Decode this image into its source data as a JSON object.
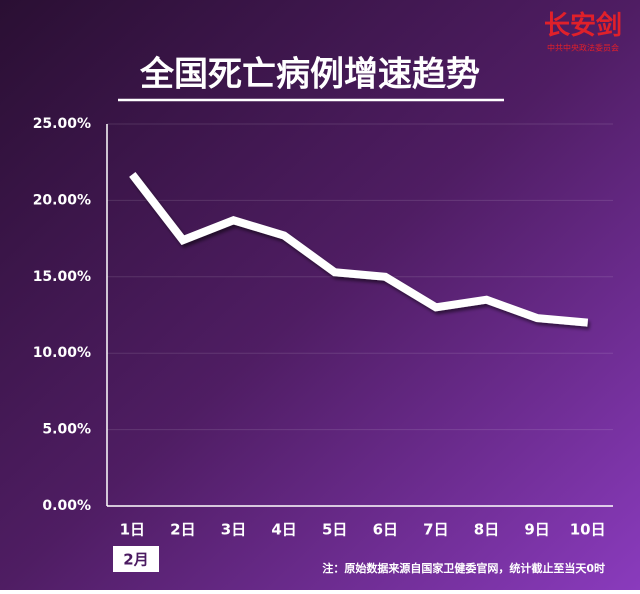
{
  "chart_data": {
    "type": "line",
    "title": "全国死亡病例增速趋势",
    "logo": {
      "name": "长安剑",
      "subtitle": "中共中央政法委员会"
    },
    "month_label": "2月",
    "note": "注：原始数据来源自国家卫健委官网，统计截止至当天0时",
    "categories": [
      "1日",
      "2日",
      "3日",
      "4日",
      "5日",
      "6日",
      "7日",
      "8日",
      "9日",
      "10日"
    ],
    "values": [
      21.7,
      17.4,
      18.7,
      17.7,
      15.3,
      15.0,
      13.0,
      13.5,
      12.3,
      12.0
    ],
    "color": "#ffffff",
    "ylim": [
      0,
      25
    ],
    "yticks": [
      {
        "value": 0,
        "label": "0.00%"
      },
      {
        "value": 5,
        "label": "5.00%"
      },
      {
        "value": 10,
        "label": "10.00%"
      },
      {
        "value": 15,
        "label": "15.00%"
      },
      {
        "value": 20,
        "label": "20.00%"
      },
      {
        "value": 25,
        "label": "25.00%"
      }
    ],
    "grid": true
  }
}
